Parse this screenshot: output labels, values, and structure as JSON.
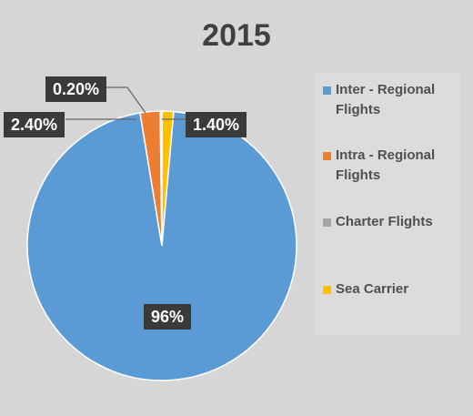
{
  "chart_data": {
    "type": "pie",
    "title": "2015",
    "categories": [
      "Inter - Regional Flights",
      "Intra - Regional Flights",
      "Charter Flights",
      "Sea Carrier"
    ],
    "values": [
      96,
      2.4,
      0.2,
      1.4
    ],
    "value_labels": [
      "96%",
      "2.40%",
      "0.20%",
      "1.40%"
    ],
    "colors": [
      "#5b9bd5",
      "#ed7d31",
      "#a5a5a5",
      "#ffc000"
    ],
    "legend_position": "right"
  }
}
